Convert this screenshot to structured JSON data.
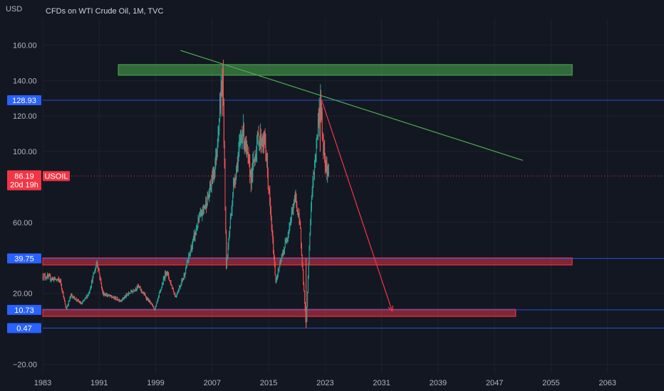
{
  "header": {
    "currency": "USD",
    "title": "CFDs on WTI Crude Oil, 1M, TVC"
  },
  "colors": {
    "background": "#131722",
    "up": "#26a69a",
    "down": "#ef5350",
    "level_line": "#2962ff",
    "badge_blue": "#2962ff",
    "badge_red": "#f23645",
    "green_zone": "#4caf50",
    "red_zone": "#f23645",
    "trend_green": "#4caf50",
    "arrow_red": "#f23645"
  },
  "chart_data": {
    "type": "candlestick",
    "symbol": "USOIL",
    "ylim": [
      -25,
      175
    ],
    "xlim": [
      1983,
      2071
    ],
    "yticks": [
      {
        "value": 160,
        "label": "160.00"
      },
      {
        "value": 140,
        "label": "140.00"
      },
      {
        "value": 120,
        "label": "120.00"
      },
      {
        "value": 100,
        "label": "100.00"
      },
      {
        "value": 60,
        "label": "60.00"
      },
      {
        "value": 20,
        "label": "20.00"
      },
      {
        "value": -20,
        "label": "−20.00"
      }
    ],
    "xticks": [
      "1983",
      "1991",
      "1999",
      "2007",
      "2015",
      "2023",
      "2031",
      "2039",
      "2047",
      "2055",
      "2063"
    ],
    "xtick_values": [
      1983,
      1991,
      1999,
      2007,
      2015,
      2023,
      2031,
      2039,
      2047,
      2055,
      2063
    ],
    "price_path": [
      [
        1983,
        30
      ],
      [
        1985.5,
        27
      ],
      [
        1986.3,
        11
      ],
      [
        1987,
        19
      ],
      [
        1988.5,
        14
      ],
      [
        1989.5,
        20
      ],
      [
        1990.7,
        38
      ],
      [
        1991.5,
        20
      ],
      [
        1994,
        16
      ],
      [
        1996.5,
        24
      ],
      [
        1998.9,
        11
      ],
      [
        2000.5,
        33
      ],
      [
        2001.8,
        18
      ],
      [
        2003,
        30
      ],
      [
        2005,
        60
      ],
      [
        2006.5,
        75
      ],
      [
        2007.5,
        95
      ],
      [
        2008.5,
        145
      ],
      [
        2009.0,
        35
      ],
      [
        2010,
        80
      ],
      [
        2011.3,
        113
      ],
      [
        2012.5,
        85
      ],
      [
        2013.5,
        108
      ],
      [
        2014.5,
        105
      ],
      [
        2016.0,
        27
      ],
      [
        2017.5,
        50
      ],
      [
        2018.8,
        75
      ],
      [
        2019.5,
        55
      ],
      [
        2020.3,
        0.47
      ],
      [
        2021,
        70
      ],
      [
        2022.3,
        129
      ],
      [
        2022.8,
        100
      ],
      [
        2023.5,
        86.19
      ]
    ],
    "levels": [
      {
        "value": 128.93,
        "label": "128.93",
        "badge": "blue"
      },
      {
        "value": 39.75,
        "label": "39.75",
        "badge": "blue"
      },
      {
        "value": 10.73,
        "label": "10.73",
        "badge": "blue"
      },
      {
        "value": 0.47,
        "label": "0.47",
        "badge": "blue"
      }
    ],
    "current_price": {
      "value": 86.19,
      "label": "86.19",
      "countdown": "20d 19h",
      "symbol_label": "USOIL"
    },
    "zones": [
      {
        "kind": "resistance",
        "color": "green",
        "x": [
          1993.7,
          2058
        ],
        "y": [
          143,
          149
        ]
      },
      {
        "kind": "support",
        "color": "red",
        "x": [
          1983,
          2058
        ],
        "y": [
          36,
          40
        ]
      },
      {
        "kind": "support",
        "color": "red",
        "x": [
          1983,
          2050
        ],
        "y": [
          7,
          11
        ]
      }
    ],
    "trendline": {
      "color": "green",
      "from": [
        2002.5,
        157
      ],
      "to": [
        2051,
        95
      ]
    },
    "projection_arrow": {
      "color": "red",
      "from": [
        2022.5,
        129
      ],
      "to": [
        2032.5,
        10
      ]
    }
  }
}
